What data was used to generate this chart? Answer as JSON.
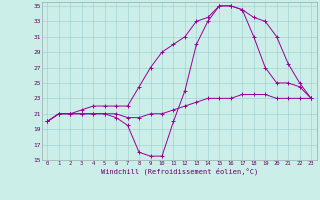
{
  "xlabel": "Windchill (Refroidissement éolien,°C)",
  "background_color": "#cceee8",
  "line_color": "#990099",
  "xlim": [
    -0.5,
    23.5
  ],
  "ylim": [
    15,
    35.5
  ],
  "xticks": [
    0,
    1,
    2,
    3,
    4,
    5,
    6,
    7,
    8,
    9,
    10,
    11,
    12,
    13,
    14,
    15,
    16,
    17,
    18,
    19,
    20,
    21,
    22,
    23
  ],
  "yticks": [
    15,
    17,
    19,
    21,
    23,
    25,
    27,
    29,
    31,
    33,
    35
  ],
  "line1": [
    20,
    21,
    21,
    21,
    21,
    21,
    21,
    20.5,
    20.5,
    21,
    21,
    21.5,
    22,
    22.5,
    23,
    23,
    23,
    23.5,
    23.5,
    23.5,
    23,
    23,
    23,
    23
  ],
  "line2": [
    20,
    21,
    21,
    21.5,
    22,
    22,
    22,
    22,
    24.5,
    27,
    29,
    30,
    31,
    33,
    33.5,
    35,
    35,
    34.5,
    33.5,
    33,
    31,
    27.5,
    25,
    23
  ],
  "line3": [
    20,
    21,
    21,
    21,
    21,
    21,
    20.5,
    19.5,
    16,
    15.5,
    15.5,
    20,
    24,
    30,
    33,
    35,
    35,
    34.5,
    31,
    27,
    25,
    25,
    24.5,
    23
  ]
}
